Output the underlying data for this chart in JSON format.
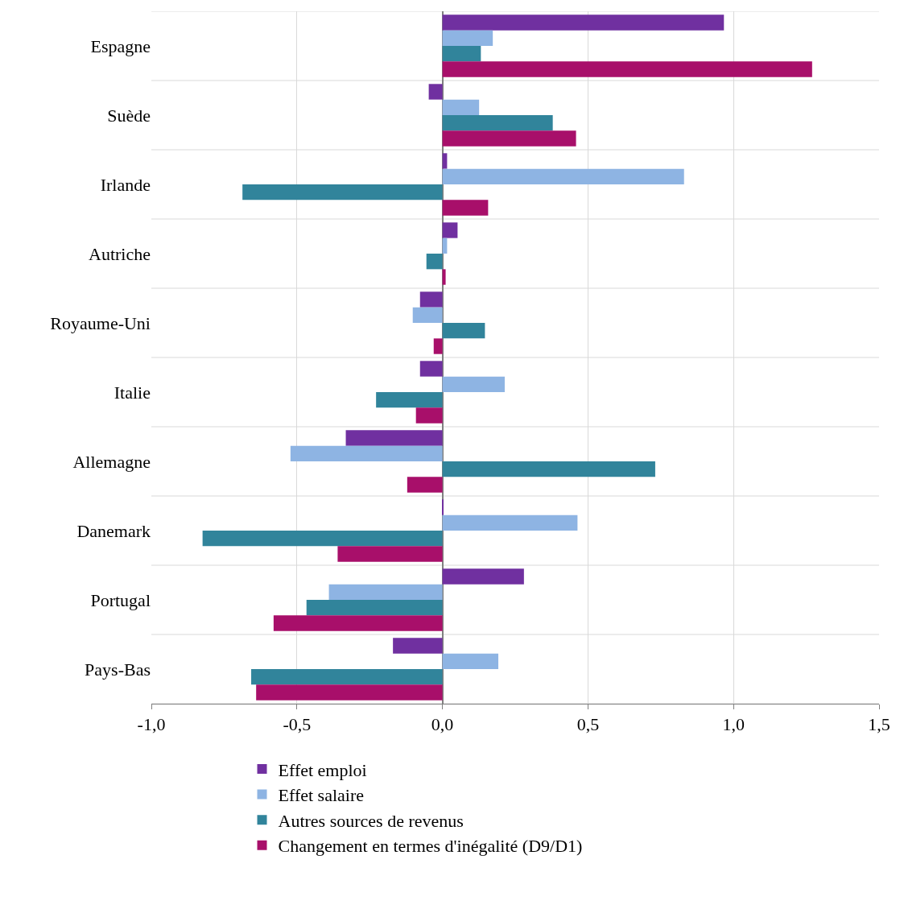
{
  "chart_data": {
    "type": "bar",
    "orientation": "horizontal",
    "categories": [
      "Espagne",
      "Suède",
      "Irlande",
      "Autriche",
      "Royaume-Uni",
      "Italie",
      "Allemagne",
      "Danemark",
      "Portugal",
      "Pays-Bas"
    ],
    "series": [
      {
        "name": "Effet emploi",
        "color": "#7030a0",
        "values": [
          0.967,
          -0.047,
          0.016,
          0.052,
          -0.077,
          -0.077,
          -0.332,
          0.003,
          0.28,
          -0.17
        ]
      },
      {
        "name": "Effet salaire",
        "color": "#8eb4e3",
        "values": [
          0.173,
          0.126,
          0.83,
          0.016,
          -0.102,
          0.214,
          -0.522,
          0.464,
          -0.39,
          0.192
        ]
      },
      {
        "name": "Autres sources de revenus",
        "color": "#31849b",
        "values": [
          0.132,
          0.379,
          -0.687,
          -0.055,
          0.146,
          -0.228,
          0.731,
          -0.824,
          -0.467,
          -0.657
        ]
      },
      {
        "name": "Changement en termes d'inégalité (D9/D1)",
        "color": "#a80f6a",
        "values": [
          1.27,
          0.459,
          0.157,
          0.011,
          -0.03,
          -0.091,
          -0.121,
          -0.36,
          -0.58,
          -0.64
        ]
      }
    ],
    "xlim": [
      -1.0,
      1.5
    ],
    "xticks": [
      {
        "value": -1.0,
        "label": "-1,0"
      },
      {
        "value": -0.5,
        "label": "-0,5"
      },
      {
        "value": 0.0,
        "label": "0,0"
      },
      {
        "value": 0.5,
        "label": "0,5"
      },
      {
        "value": 1.0,
        "label": "1,0"
      },
      {
        "value": 1.5,
        "label": "1,5"
      }
    ],
    "grid": true,
    "legend": "bottom"
  }
}
